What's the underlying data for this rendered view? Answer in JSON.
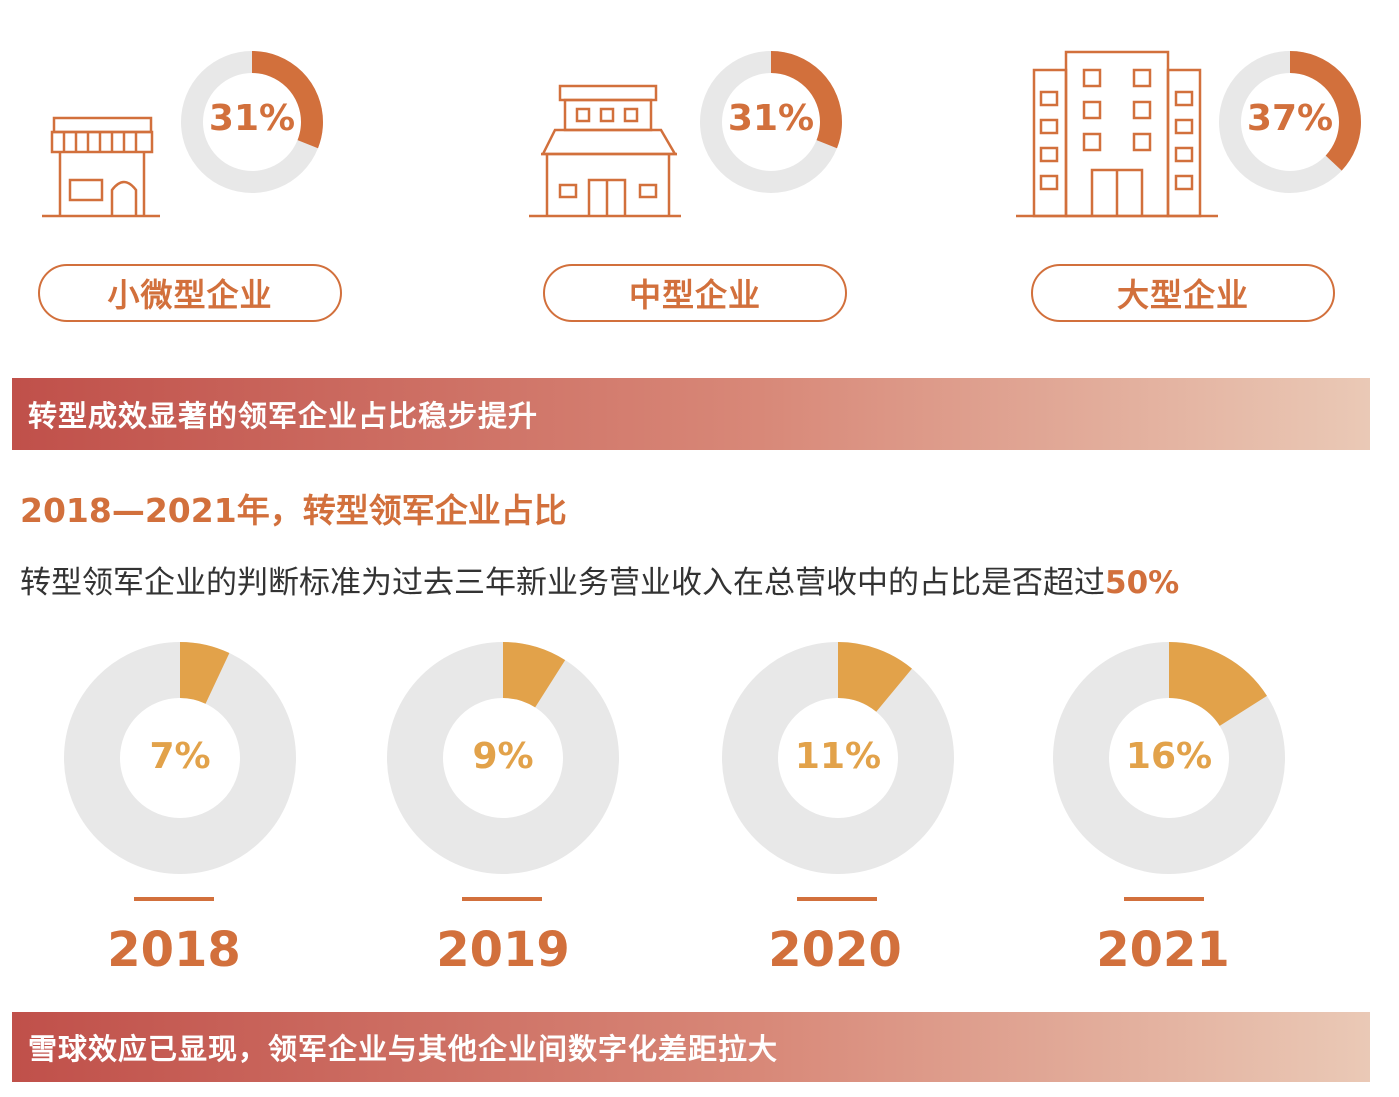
{
  "colors": {
    "accent": "#D2703C",
    "track": "#E8E8E8",
    "yearly_accent": "#E2A24A",
    "text_dark": "#333333"
  },
  "company_types": [
    {
      "label": "小微型企业",
      "percent_label": "31%",
      "icon": "shop-icon"
    },
    {
      "label": "中型企业",
      "percent_label": "31%",
      "icon": "building-mid-icon"
    },
    {
      "label": "大型企业",
      "percent_label": "37%",
      "icon": "tower-icon"
    }
  ],
  "banner1": "转型成效显著的领军企业占比稳步提升",
  "subhead": "2018—2021年，转型领军企业占比",
  "desc": {
    "text": "转型领军企业的判断标准为过去三年新业务营业收入在总营收中的占比是否超过",
    "highlight": "50%"
  },
  "banner2": "雪球效应已显现，领军企业与其他企业间数字化差距拉大",
  "chart_data": [
    {
      "type": "pie",
      "categories": [
        "小微型企业",
        "中型企业",
        "大型企业"
      ],
      "values": [
        31,
        31,
        37
      ]
    },
    {
      "type": "pie",
      "categories": [
        "2018",
        "2019",
        "2020",
        "2021"
      ],
      "values": [
        7,
        9,
        11,
        16
      ],
      "value_labels": [
        "7%",
        "9%",
        "11%",
        "16%"
      ]
    }
  ]
}
